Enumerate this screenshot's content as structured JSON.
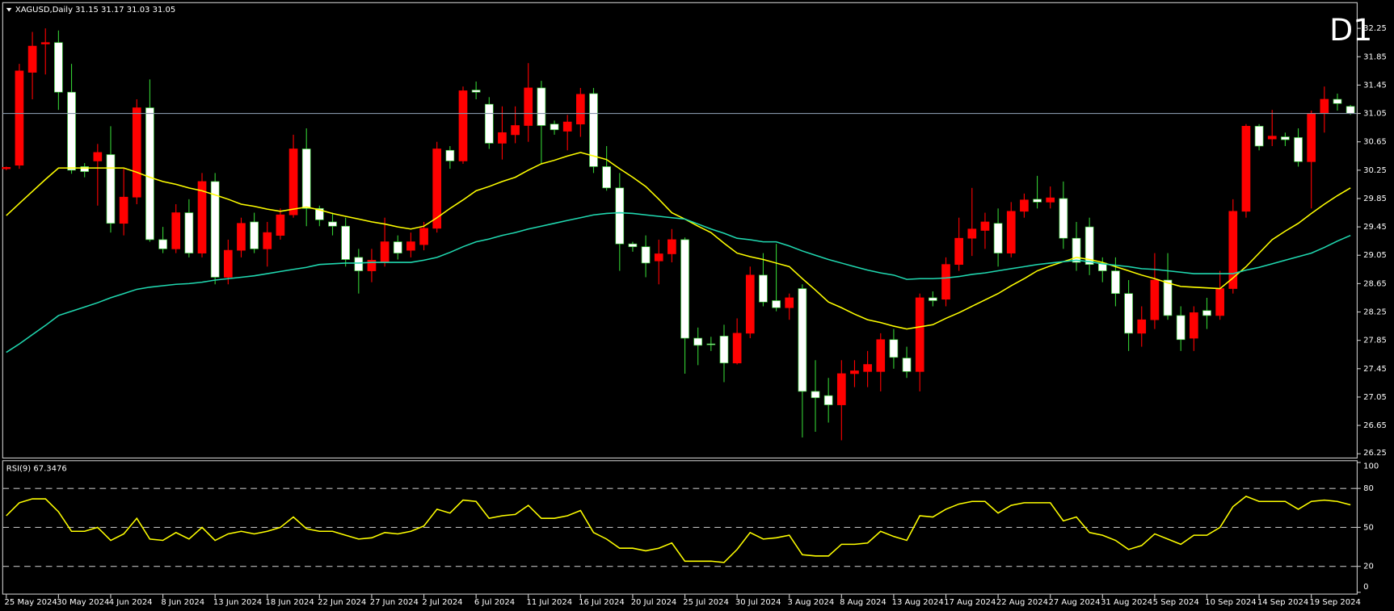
{
  "chart_data": [
    {
      "type": "candlestick",
      "title": "XAGUSD,Daily  31.15 31.17 31.03 31.05",
      "annotation": "D1",
      "categories": [
        "25 May 2024",
        null,
        null,
        null,
        "30 May 2024",
        null,
        null,
        null,
        "4 Jun 2024",
        null,
        null,
        null,
        "8 Jun 2024",
        null,
        null,
        null,
        "13 Jun 2024",
        null,
        null,
        null,
        "18 Jun 2024",
        null,
        null,
        null,
        "22 Jun 2024",
        null,
        null,
        null,
        "27 Jun 2024",
        null,
        null,
        null,
        "2 Jul 2024",
        null,
        null,
        null,
        "6 Jul 2024",
        null,
        null,
        null,
        "11 Jul 2024",
        null,
        null,
        null,
        "16 Jul 2024",
        null,
        null,
        null,
        "20 Jul 2024",
        null,
        null,
        null,
        "25 Jul 2024",
        null,
        null,
        null,
        "30 Jul 2024",
        null,
        null,
        null,
        "3 Aug 2024",
        null,
        null,
        null,
        "8 Aug 2024",
        null,
        null,
        null,
        "13 Aug 2024",
        null,
        null,
        null,
        "17 Aug 2024",
        null,
        null,
        null,
        "22 Aug 2024",
        null,
        null,
        null,
        "27 Aug 2024",
        null,
        null,
        null,
        "31 Aug 2024",
        null,
        null,
        null,
        "5 Sep 2024",
        null,
        null,
        null,
        "10 Sep 2024",
        null,
        null,
        null,
        "14 Sep 2024",
        null,
        null,
        null,
        "19 Sep 2024",
        null,
        null,
        null
      ],
      "open": [
        30.27,
        30.32,
        31.63,
        32.03,
        32.05,
        31.35,
        30.3,
        30.38,
        30.47,
        29.5,
        29.87,
        31.13,
        29.27,
        29.14,
        29.65,
        29.08,
        30.09,
        28.74,
        29.12,
        29.52,
        29.14,
        29.33,
        29.62,
        30.55,
        29.71,
        29.52,
        29.46,
        29.02,
        28.83,
        28.95,
        29.24,
        29.12,
        29.2,
        29.43,
        30.53,
        30.38,
        31.38,
        31.18,
        30.63,
        30.75,
        30.88,
        31.41,
        30.9,
        30.8,
        30.9,
        31.33,
        30.3,
        30.0,
        29.21,
        29.17,
        28.97,
        29.07,
        29.27,
        27.88,
        27.8,
        27.91,
        27.53,
        27.95,
        28.77,
        28.41,
        28.31,
        28.58,
        27.13,
        27.07,
        26.94,
        27.38,
        27.41,
        27.41,
        27.86,
        27.6,
        27.41,
        28.45,
        28.43,
        28.92,
        29.29,
        29.4,
        29.5,
        29.08,
        29.67,
        29.84,
        29.8,
        29.85,
        29.29,
        29.45,
        28.94,
        28.83,
        28.51,
        27.95,
        28.14,
        28.7,
        28.2,
        27.88,
        28.27,
        28.2,
        28.58,
        29.67,
        30.87,
        30.69,
        30.72,
        30.71,
        30.37,
        31.05,
        31.25,
        31.15
      ],
      "high": [
        30.3,
        31.75,
        32.2,
        32.25,
        32.22,
        31.75,
        30.35,
        30.62,
        30.87,
        30.27,
        31.25,
        31.53,
        29.45,
        29.77,
        29.84,
        30.21,
        30.21,
        29.27,
        29.58,
        29.65,
        29.52,
        29.71,
        30.75,
        30.84,
        29.75,
        29.65,
        29.58,
        29.14,
        29.14,
        29.58,
        29.33,
        29.37,
        29.52,
        30.65,
        30.59,
        31.43,
        31.5,
        31.28,
        31.15,
        31.15,
        31.76,
        31.51,
        30.95,
        31.03,
        31.41,
        31.41,
        30.59,
        30.21,
        29.24,
        29.33,
        29.27,
        29.42,
        29.3,
        28.03,
        27.9,
        28.07,
        28.16,
        28.89,
        29.08,
        29.21,
        28.51,
        28.64,
        27.57,
        27.32,
        27.57,
        27.57,
        27.7,
        27.95,
        28.01,
        27.76,
        28.51,
        28.54,
        29.02,
        29.58,
        30.0,
        29.65,
        29.71,
        29.8,
        29.92,
        30.17,
        30.02,
        30.09,
        29.52,
        29.58,
        29.02,
        29.02,
        28.7,
        28.33,
        29.08,
        29.08,
        28.33,
        28.33,
        28.45,
        28.83,
        29.84,
        30.9,
        30.9,
        31.1,
        30.78,
        30.84,
        31.09,
        31.43,
        31.33,
        31.17
      ],
      "low": [
        30.25,
        30.27,
        31.25,
        31.6,
        31.1,
        30.2,
        30.15,
        29.75,
        29.37,
        29.33,
        29.77,
        29.24,
        29.08,
        29.08,
        29.02,
        29.02,
        28.64,
        28.64,
        29.02,
        29.08,
        28.89,
        29.27,
        29.58,
        29.46,
        29.46,
        29.33,
        28.89,
        28.51,
        28.67,
        28.89,
        28.99,
        29.02,
        29.12,
        29.37,
        30.27,
        30.34,
        31.25,
        30.55,
        30.4,
        30.63,
        30.65,
        30.34,
        30.75,
        30.53,
        30.72,
        30.21,
        29.96,
        28.83,
        29.1,
        28.74,
        28.64,
        28.95,
        27.38,
        27.5,
        27.7,
        27.26,
        27.51,
        27.88,
        28.33,
        28.26,
        28.14,
        26.48,
        26.56,
        26.69,
        26.44,
        27.19,
        27.19,
        27.13,
        27.45,
        27.32,
        27.13,
        28.33,
        28.33,
        28.83,
        29.04,
        29.14,
        28.89,
        29.02,
        29.58,
        29.71,
        29.71,
        29.14,
        28.83,
        28.77,
        28.67,
        28.33,
        27.7,
        27.76,
        28.01,
        28.14,
        27.7,
        27.7,
        28.01,
        28.14,
        28.51,
        29.58,
        30.53,
        30.59,
        30.59,
        30.3,
        29.71,
        30.78,
        31.09,
        31.03
      ],
      "close": [
        30.29,
        31.65,
        32.0,
        32.05,
        31.35,
        30.25,
        30.23,
        30.5,
        29.5,
        29.87,
        31.13,
        29.27,
        29.14,
        29.65,
        29.08,
        30.09,
        28.74,
        29.12,
        29.5,
        29.14,
        29.37,
        29.62,
        30.55,
        29.71,
        29.55,
        29.46,
        28.99,
        28.83,
        28.98,
        29.24,
        29.08,
        29.24,
        29.43,
        30.55,
        30.38,
        31.37,
        31.35,
        30.63,
        30.78,
        30.88,
        31.41,
        30.88,
        30.82,
        30.93,
        31.32,
        30.3,
        30.0,
        29.21,
        29.17,
        28.94,
        29.07,
        29.27,
        27.88,
        27.78,
        27.79,
        27.53,
        27.95,
        28.77,
        28.39,
        28.31,
        28.45,
        27.13,
        27.04,
        26.94,
        27.38,
        27.42,
        27.51,
        27.86,
        27.61,
        27.41,
        28.45,
        28.41,
        28.92,
        29.29,
        29.42,
        29.52,
        29.08,
        29.67,
        29.83,
        29.8,
        29.86,
        29.29,
        28.95,
        28.92,
        28.83,
        28.51,
        27.95,
        28.14,
        28.7,
        28.2,
        27.86,
        28.24,
        28.2,
        28.58,
        29.67,
        30.87,
        30.59,
        30.73,
        30.68,
        30.37,
        31.05,
        31.25,
        31.19,
        31.05
      ],
      "bull_color": "#ff0000",
      "bear_color": "#ffffff",
      "bear_wick_color": "#33cc33",
      "series": [
        {
          "color": "#ffff00",
          "values": [
            29.61,
            29.78,
            29.95,
            30.12,
            30.28,
            30.28,
            30.28,
            30.28,
            30.28,
            30.28,
            30.22,
            30.15,
            30.09,
            30.05,
            30.0,
            29.96,
            29.9,
            29.84,
            29.77,
            29.74,
            29.7,
            29.67,
            29.7,
            29.73,
            29.69,
            29.64,
            29.6,
            29.56,
            29.52,
            29.49,
            29.45,
            29.42,
            29.46,
            29.58,
            29.71,
            29.83,
            29.96,
            30.02,
            30.09,
            30.15,
            30.25,
            30.34,
            30.39,
            30.45,
            30.5,
            30.45,
            30.4,
            30.27,
            30.15,
            30.02,
            29.84,
            29.65,
            29.56,
            29.46,
            29.37,
            29.22,
            29.08,
            29.03,
            28.99,
            28.94,
            28.89,
            28.72,
            28.56,
            28.39,
            28.31,
            28.22,
            28.14,
            28.1,
            28.05,
            28.01,
            28.04,
            28.07,
            28.16,
            28.24,
            28.33,
            28.42,
            28.51,
            28.62,
            28.72,
            28.83,
            28.9,
            28.96,
            29.02,
            28.99,
            28.95,
            28.89,
            28.83,
            28.77,
            28.72,
            28.66,
            28.61,
            28.6,
            28.59,
            28.58,
            28.73,
            28.89,
            29.08,
            29.27,
            29.39,
            29.5,
            29.64,
            29.77,
            29.89,
            30.0
          ]
        },
        {
          "color": "#20d8b0",
          "values": [
            27.68,
            27.8,
            27.93,
            28.06,
            28.2,
            28.26,
            28.32,
            28.38,
            28.45,
            28.51,
            28.57,
            28.6,
            28.62,
            28.64,
            28.65,
            28.67,
            28.7,
            28.72,
            28.74,
            28.76,
            28.79,
            28.82,
            28.85,
            28.88,
            28.92,
            28.93,
            28.94,
            28.94,
            28.95,
            28.95,
            28.95,
            28.95,
            28.98,
            29.02,
            29.09,
            29.17,
            29.24,
            29.28,
            29.33,
            29.37,
            29.42,
            29.46,
            29.5,
            29.54,
            29.58,
            29.62,
            29.64,
            29.65,
            29.64,
            29.62,
            29.6,
            29.58,
            29.56,
            29.49,
            29.42,
            29.36,
            29.29,
            29.27,
            29.24,
            29.24,
            29.18,
            29.11,
            29.05,
            28.99,
            28.94,
            28.89,
            28.84,
            28.8,
            28.77,
            28.71,
            28.72,
            28.72,
            28.73,
            28.75,
            28.78,
            28.8,
            28.83,
            28.86,
            28.89,
            28.92,
            28.94,
            28.96,
            28.98,
            28.96,
            28.93,
            28.91,
            28.89,
            28.86,
            28.85,
            28.83,
            28.81,
            28.79,
            28.79,
            28.79,
            28.79,
            28.84,
            28.88,
            28.93,
            28.98,
            29.03,
            29.08,
            29.16,
            29.25,
            29.33
          ]
        }
      ],
      "ylim": [
        26.19,
        32.6
      ],
      "yticks": [
        32.25,
        31.85,
        31.45,
        31.05,
        30.65,
        30.25,
        29.85,
        29.45,
        29.05,
        28.65,
        28.25,
        27.85,
        27.45,
        27.05,
        26.65,
        26.25
      ],
      "price_line_color": "#8494a8"
    },
    {
      "type": "line",
      "title": "RSI(9) 67.3476",
      "series": [
        {
          "color": "#ffff00",
          "values": [
            59,
            69,
            72,
            72,
            62,
            47,
            47,
            50,
            40,
            45,
            57,
            41,
            40,
            46,
            41,
            50,
            40,
            45,
            47,
            45,
            47,
            50,
            58,
            49,
            47,
            47,
            44,
            41,
            42,
            46,
            45,
            47,
            51,
            64,
            61,
            71,
            70,
            57,
            59,
            60,
            67,
            57,
            57,
            59,
            63,
            46,
            41,
            34,
            34,
            32,
            34,
            38,
            24,
            24,
            24,
            23,
            33,
            46,
            41,
            42,
            44,
            29,
            28,
            28,
            37,
            37,
            38,
            47,
            43,
            40,
            59,
            58,
            64,
            68,
            70,
            70,
            61,
            67,
            69,
            69,
            69,
            55,
            58,
            46,
            44,
            40,
            33,
            36,
            45,
            41,
            37,
            44,
            44,
            50,
            66,
            74,
            70,
            70,
            70,
            64,
            70,
            71,
            70,
            67.3476
          ]
        }
      ],
      "ylim": [
        0,
        100
      ],
      "yticks": [
        100,
        80,
        50,
        20,
        0
      ],
      "levels": [
        80,
        50,
        20
      ]
    }
  ]
}
